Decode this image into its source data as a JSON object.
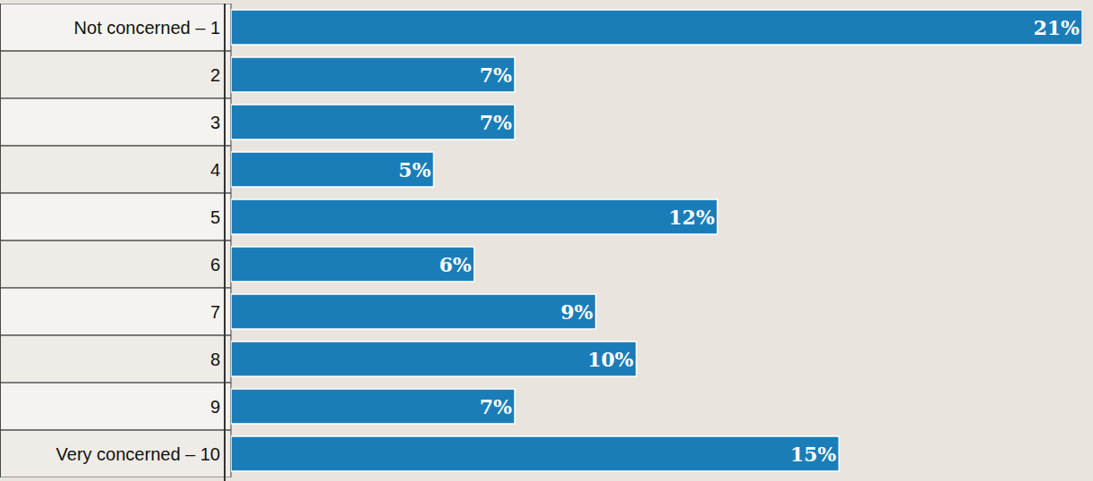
{
  "chart_data": {
    "type": "bar",
    "orientation": "horizontal",
    "categories": [
      "Not concerned – 1",
      "2",
      "3",
      "4",
      "5",
      "6",
      "7",
      "8",
      "9",
      "Very concerned – 10"
    ],
    "values": [
      21,
      7,
      7,
      5,
      12,
      6,
      9,
      10,
      7,
      15
    ],
    "value_labels": [
      "21%",
      "7%",
      "7%",
      "5%",
      "12%",
      "6%",
      "9%",
      "10%",
      "7%",
      "15%"
    ],
    "color": "#1b7db8",
    "xlim": [
      0,
      21
    ],
    "xticks": [],
    "tick_labels": "y",
    "data_labels": true,
    "grid": false
  }
}
